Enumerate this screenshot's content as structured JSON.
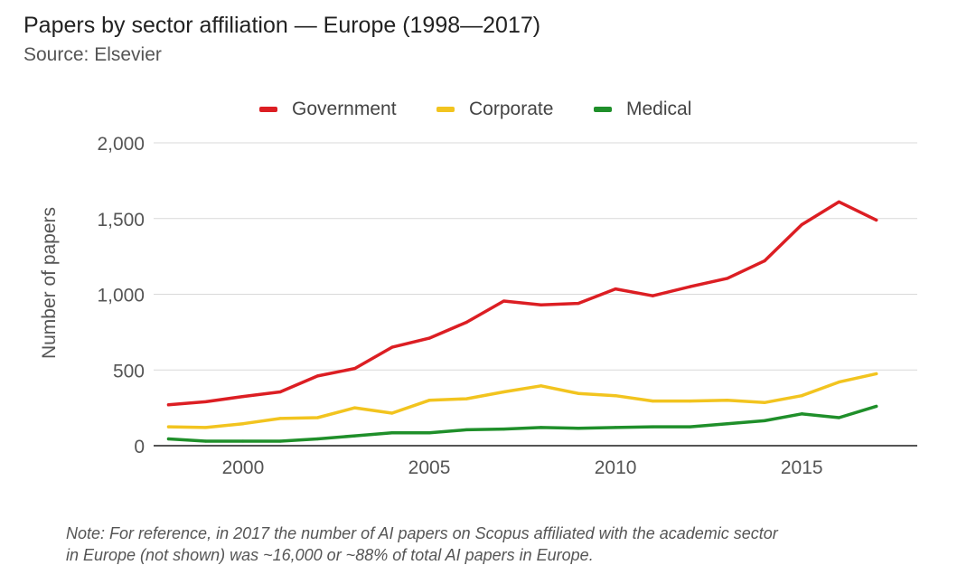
{
  "title": "Papers by sector affiliation — Europe (1998—2017)",
  "subtitle": "Source: Elsevier",
  "note": {
    "line1": "Note: For reference, in 2017 the number of AI papers on Scopus affiliated with the academic sector",
    "line2": "in Europe (not shown) was ~16,000 or ~88% of total AI papers in Europe."
  },
  "chart_data": {
    "type": "line",
    "title": "",
    "xlabel": "",
    "ylabel": "Number of papers",
    "x": [
      1998,
      1999,
      2000,
      2001,
      2002,
      2003,
      2004,
      2005,
      2006,
      2007,
      2008,
      2009,
      2010,
      2011,
      2012,
      2013,
      2014,
      2015,
      2016,
      2017
    ],
    "xticks": [
      2000,
      2005,
      2010,
      2015
    ],
    "xtick_labels": [
      "2000",
      "2005",
      "2010",
      "2015"
    ],
    "xlim": [
      1997.6,
      2018.1
    ],
    "ylim": [
      0,
      2000
    ],
    "yticks": [
      0,
      500,
      1000,
      1500,
      2000
    ],
    "ytick_labels": [
      "0",
      "500",
      "1,000",
      "1,500",
      "2,000"
    ],
    "grid": true,
    "legend_position": "top",
    "series": [
      {
        "name": "Government",
        "color": "#dc1e23",
        "values": [
          270,
          290,
          325,
          355,
          460,
          510,
          650,
          710,
          815,
          955,
          930,
          940,
          1035,
          990,
          1050,
          1105,
          1220,
          1460,
          1610,
          1490
        ]
      },
      {
        "name": "Corporate",
        "color": "#f2c41f",
        "values": [
          125,
          120,
          145,
          180,
          185,
          250,
          215,
          300,
          310,
          355,
          395,
          345,
          330,
          295,
          295,
          300,
          285,
          330,
          420,
          475
        ]
      },
      {
        "name": "Medical",
        "color": "#1f8f2a",
        "values": [
          45,
          30,
          30,
          30,
          45,
          65,
          85,
          85,
          105,
          110,
          120,
          115,
          120,
          125,
          125,
          145,
          165,
          210,
          185,
          260
        ]
      }
    ]
  }
}
